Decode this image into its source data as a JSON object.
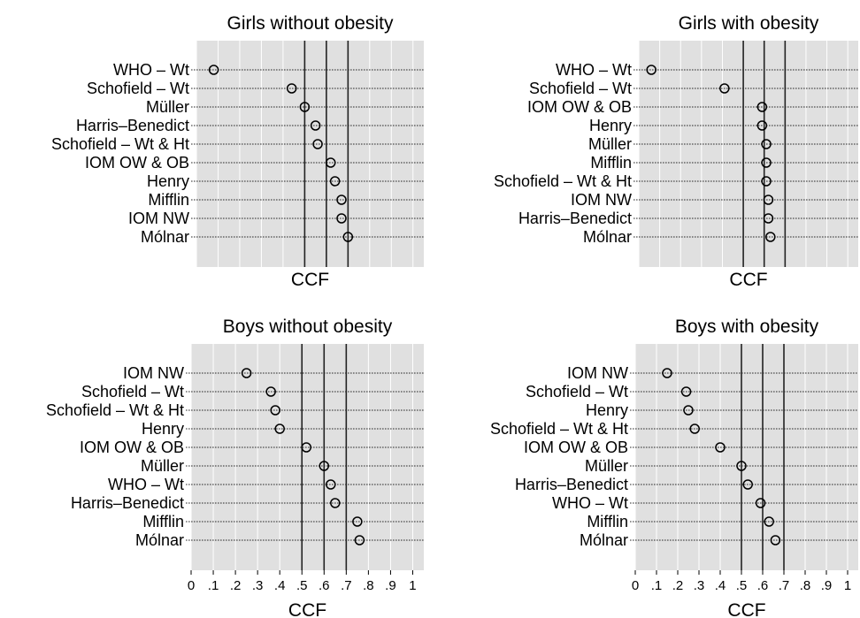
{
  "chart_data": [
    {
      "type": "dot",
      "title": "Girls without obesity",
      "xlabel": "CCF",
      "xlim": [
        0,
        1.05
      ],
      "xticks": [
        0,
        0.1,
        0.2,
        0.3,
        0.4,
        0.5,
        0.6,
        0.7,
        0.8,
        0.9,
        1
      ],
      "xtick_labels": [
        "0",
        ".1",
        ".2",
        ".3",
        ".4",
        ".5",
        ".6",
        ".7",
        ".8",
        ".9",
        "1"
      ],
      "show_xtick_labels": false,
      "reference_lines": [
        0.5,
        0.6,
        0.7
      ],
      "categories": [
        "WHO – Wt",
        "Schofield – Wt",
        "Müller",
        "Harris–Benedict",
        "Schofield – Wt & Ht",
        "IOM OW & OB",
        "Henry",
        "Mifflin",
        "IOM NW",
        "Mólnar"
      ],
      "values": [
        0.08,
        0.44,
        0.5,
        0.55,
        0.56,
        0.62,
        0.64,
        0.67,
        0.67,
        0.7
      ]
    },
    {
      "type": "dot",
      "title": "Girls with obesity",
      "xlabel": "CCF",
      "xlim": [
        0,
        1.05
      ],
      "xticks": [
        0,
        0.1,
        0.2,
        0.3,
        0.4,
        0.5,
        0.6,
        0.7,
        0.8,
        0.9,
        1
      ],
      "xtick_labels": [
        "0",
        ".1",
        ".2",
        ".3",
        ".4",
        ".5",
        ".6",
        ".7",
        ".8",
        ".9",
        "1"
      ],
      "show_xtick_labels": false,
      "reference_lines": [
        0.5,
        0.6,
        0.7
      ],
      "categories": [
        "WHO – Wt",
        "Schofield – Wt",
        "IOM OW & OB",
        "Henry",
        "Müller",
        "Mifflin",
        "Schofield – Wt & Ht",
        "IOM NW",
        "Harris–Benedict",
        "Mólnar"
      ],
      "values": [
        0.06,
        0.41,
        0.59,
        0.59,
        0.61,
        0.61,
        0.61,
        0.62,
        0.62,
        0.63
      ]
    },
    {
      "type": "dot",
      "title": "Boys without obesity",
      "xlabel": "CCF",
      "xlim": [
        0,
        1.05
      ],
      "xticks": [
        0,
        0.1,
        0.2,
        0.3,
        0.4,
        0.5,
        0.6,
        0.7,
        0.8,
        0.9,
        1
      ],
      "xtick_labels": [
        "0",
        ".1",
        ".2",
        ".3",
        ".4",
        ".5",
        ".6",
        ".7",
        ".8",
        ".9",
        "1"
      ],
      "show_xtick_labels": true,
      "reference_lines": [
        0.5,
        0.6,
        0.7
      ],
      "categories": [
        "IOM NW",
        "Schofield – Wt",
        "Schofield – Wt & Ht",
        "Henry",
        "IOM OW & OB",
        "Müller",
        "WHO – Wt",
        "Harris–Benedict",
        "Mifflin",
        "Mólnar"
      ],
      "values": [
        0.25,
        0.36,
        0.38,
        0.4,
        0.52,
        0.6,
        0.63,
        0.65,
        0.75,
        0.76
      ]
    },
    {
      "type": "dot",
      "title": "Boys with obesity",
      "xlabel": "CCF",
      "xlim": [
        0,
        1.05
      ],
      "xticks": [
        0,
        0.1,
        0.2,
        0.3,
        0.4,
        0.5,
        0.6,
        0.7,
        0.8,
        0.9,
        1
      ],
      "xtick_labels": [
        "0",
        ".1",
        ".2",
        ".3",
        ".4",
        ".5",
        ".6",
        ".7",
        ".8",
        ".9",
        "1"
      ],
      "show_xtick_labels": true,
      "reference_lines": [
        0.5,
        0.6,
        0.7
      ],
      "categories": [
        "IOM NW",
        "Schofield – Wt",
        "Henry",
        "Schofield – Wt & Ht",
        "IOM OW & OB",
        "Müller",
        "Harris–Benedict",
        "WHO – Wt",
        "Mifflin",
        "Mólnar"
      ],
      "values": [
        0.15,
        0.24,
        0.25,
        0.28,
        0.4,
        0.5,
        0.53,
        0.59,
        0.63,
        0.66
      ]
    }
  ]
}
